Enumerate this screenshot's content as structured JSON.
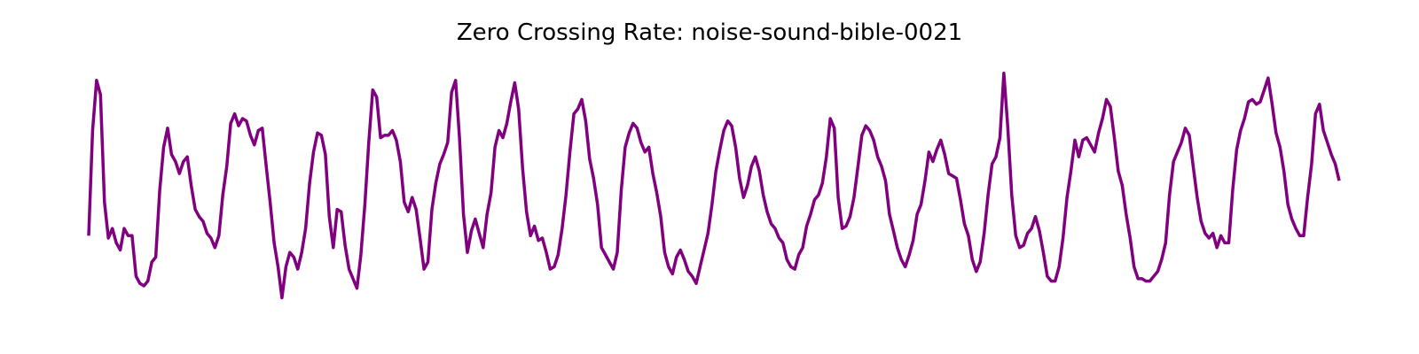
{
  "chart_data": {
    "type": "line",
    "title": "Zero Crossing Rate: noise-sound-bible-0021",
    "xlabel": "",
    "ylabel": "",
    "axes_visible": false,
    "grid": false,
    "ylim": [
      0,
      1
    ],
    "series": [
      {
        "color": "#800080",
        "values": [
          0.31,
          0.75,
          0.96,
          0.9,
          0.45,
          0.3,
          0.34,
          0.28,
          0.25,
          0.34,
          0.31,
          0.31,
          0.14,
          0.11,
          0.1,
          0.12,
          0.2,
          0.22,
          0.5,
          0.68,
          0.76,
          0.65,
          0.62,
          0.57,
          0.62,
          0.64,
          0.52,
          0.42,
          0.39,
          0.37,
          0.32,
          0.3,
          0.26,
          0.31,
          0.48,
          0.6,
          0.78,
          0.82,
          0.77,
          0.8,
          0.79,
          0.73,
          0.69,
          0.75,
          0.76,
          0.6,
          0.45,
          0.28,
          0.18,
          0.05,
          0.18,
          0.24,
          0.22,
          0.17,
          0.24,
          0.34,
          0.53,
          0.66,
          0.74,
          0.73,
          0.65,
          0.39,
          0.26,
          0.42,
          0.41,
          0.27,
          0.17,
          0.13,
          0.09,
          0.23,
          0.44,
          0.7,
          0.92,
          0.89,
          0.72,
          0.73,
          0.73,
          0.75,
          0.71,
          0.62,
          0.45,
          0.41,
          0.47,
          0.42,
          0.3,
          0.17,
          0.2,
          0.42,
          0.53,
          0.61,
          0.65,
          0.7,
          0.91,
          0.96,
          0.72,
          0.4,
          0.24,
          0.33,
          0.38,
          0.32,
          0.26,
          0.4,
          0.49,
          0.68,
          0.75,
          0.72,
          0.78,
          0.87,
          0.95,
          0.84,
          0.59,
          0.41,
          0.31,
          0.35,
          0.29,
          0.3,
          0.24,
          0.17,
          0.18,
          0.23,
          0.34,
          0.48,
          0.66,
          0.82,
          0.84,
          0.88,
          0.79,
          0.63,
          0.55,
          0.44,
          0.26,
          0.23,
          0.2,
          0.17,
          0.24,
          0.5,
          0.68,
          0.74,
          0.78,
          0.76,
          0.7,
          0.66,
          0.68,
          0.57,
          0.49,
          0.39,
          0.24,
          0.18,
          0.15,
          0.22,
          0.25,
          0.21,
          0.16,
          0.14,
          0.11,
          0.18,
          0.25,
          0.32,
          0.44,
          0.58,
          0.67,
          0.75,
          0.79,
          0.77,
          0.68,
          0.55,
          0.47,
          0.52,
          0.6,
          0.64,
          0.58,
          0.48,
          0.41,
          0.36,
          0.34,
          0.3,
          0.28,
          0.21,
          0.18,
          0.17,
          0.23,
          0.26,
          0.35,
          0.4,
          0.46,
          0.48,
          0.53,
          0.64,
          0.8,
          0.76,
          0.47,
          0.34,
          0.35,
          0.39,
          0.47,
          0.6,
          0.73,
          0.77,
          0.75,
          0.71,
          0.64,
          0.6,
          0.54,
          0.4,
          0.33,
          0.26,
          0.21,
          0.18,
          0.23,
          0.29,
          0.4,
          0.44,
          0.54,
          0.66,
          0.62,
          0.67,
          0.71,
          0.65,
          0.57,
          0.56,
          0.55,
          0.46,
          0.36,
          0.31,
          0.21,
          0.16,
          0.2,
          0.32,
          0.48,
          0.61,
          0.64,
          0.72,
          0.99,
          0.76,
          0.48,
          0.31,
          0.26,
          0.27,
          0.32,
          0.34,
          0.39,
          0.33,
          0.24,
          0.14,
          0.12,
          0.12,
          0.18,
          0.3,
          0.47,
          0.58,
          0.71,
          0.64,
          0.71,
          0.72,
          0.69,
          0.66,
          0.74,
          0.8,
          0.88,
          0.85,
          0.72,
          0.58,
          0.52,
          0.4,
          0.3,
          0.18,
          0.13,
          0.13,
          0.12,
          0.12,
          0.14,
          0.16,
          0.21,
          0.28,
          0.48,
          0.62,
          0.66,
          0.7,
          0.76,
          0.73,
          0.6,
          0.47,
          0.37,
          0.32,
          0.3,
          0.32,
          0.26,
          0.31,
          0.28,
          0.28,
          0.5,
          0.67,
          0.75,
          0.8,
          0.87,
          0.88,
          0.86,
          0.87,
          0.92,
          0.97,
          0.86,
          0.74,
          0.68,
          0.58,
          0.44,
          0.38,
          0.34,
          0.31,
          0.31,
          0.47,
          0.61,
          0.82,
          0.86,
          0.75,
          0.7,
          0.65,
          0.61,
          0.54
        ]
      }
    ]
  }
}
